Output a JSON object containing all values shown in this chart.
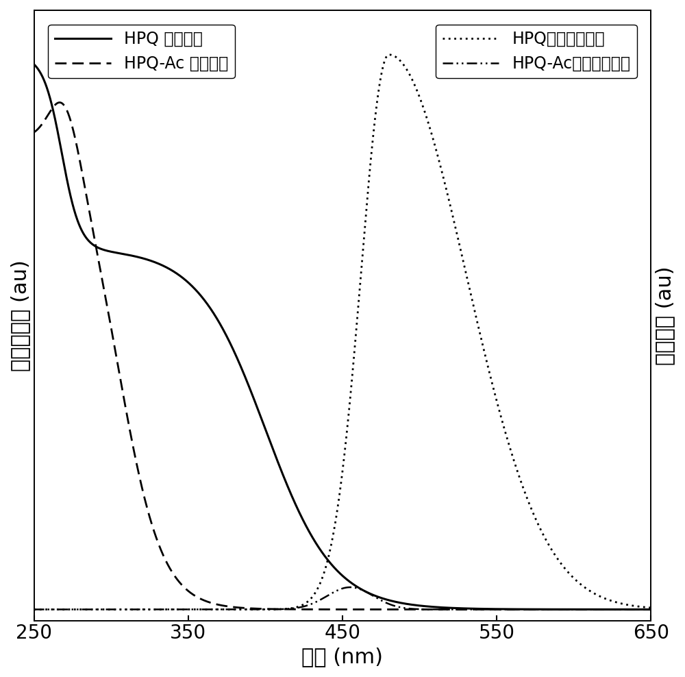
{
  "x_min": 250,
  "x_max": 650,
  "x_ticks": [
    250,
    350,
    450,
    550,
    650
  ],
  "xlabel": "波长 (nm)",
  "ylabel_left": "归一化吸收 (au)",
  "ylabel_right": "荧光强度 (au)",
  "legend_entries": [
    "HPQ 吸收曲线",
    "HPQ-Ac 吸收曲线",
    "HPQ荧光发射曲线",
    "HPQ-Ac荧光发射曲线"
  ],
  "background_color": "#ffffff",
  "line_color": "#000000",
  "font_size_label": 22,
  "font_size_tick": 20,
  "font_size_legend": 17
}
